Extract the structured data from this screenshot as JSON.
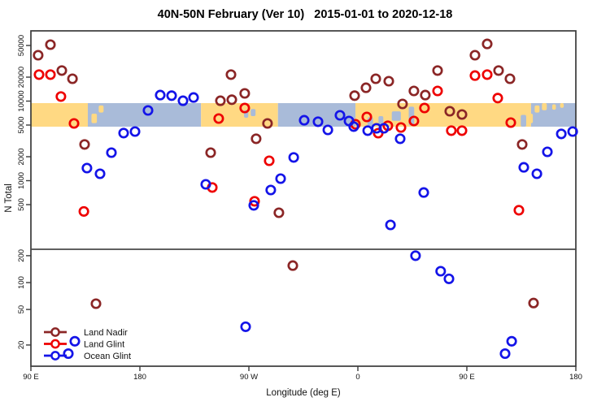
{
  "chart_data": {
    "type": "scatter",
    "title": "40N-50N February (Ver 10)   2015-01-01 to 2020-12-18",
    "xlabel": "Longitude (deg E)",
    "ylabel": "N Total",
    "x_axis": {
      "ticks": [
        {
          "lon": 90,
          "label": "90 E"
        },
        {
          "lon": 180,
          "label": "180"
        },
        {
          "lon": 270,
          "label": "90 W"
        },
        {
          "lon": 360,
          "label": "0"
        },
        {
          "lon": 450,
          "label": "90 E"
        },
        {
          "lon": 540,
          "label": "180"
        }
      ],
      "range_deg_plotted": [
        90,
        540
      ]
    },
    "y_axis": {
      "scale": "log10, broken into upper and lower panels",
      "upper_ticks": [
        50000,
        20000,
        10000,
        5000,
        2000,
        1000,
        500
      ],
      "lower_ticks": [
        200,
        100,
        50,
        20
      ]
    },
    "colors": {
      "land_nadir": "#8B2626",
      "land_glint": "#EE0000",
      "ocean_glint": "#1414E8",
      "band_land": "#FFD983",
      "band_ocean": "#A9BBD9",
      "frame": "#3A3A3A"
    },
    "map_band": {
      "n_range_covered": [
        5000,
        10000
      ],
      "segments": [
        {
          "from": 90,
          "to": 137,
          "surface": "land"
        },
        {
          "from": 137,
          "to": 230.5,
          "surface": "ocean"
        },
        {
          "from": 230.5,
          "to": 294,
          "surface": "land"
        },
        {
          "from": 294,
          "to": 358,
          "surface": "ocean"
        },
        {
          "from": 358,
          "to": 503,
          "surface": "land"
        },
        {
          "from": 503,
          "to": 540,
          "surface": "ocean"
        }
      ],
      "islands": [
        {
          "from": 140,
          "to": 144.5,
          "f0": 0.45,
          "f1": 0.85
        },
        {
          "from": 146,
          "to": 150,
          "f0": 0.1,
          "f1": 0.4
        },
        {
          "from": 500,
          "to": 504.5,
          "f0": 0.45,
          "f1": 0.85
        },
        {
          "from": 506,
          "to": 510,
          "f0": 0.1,
          "f1": 0.4
        },
        {
          "from": 512,
          "to": 516,
          "f0": 0.0,
          "f1": 0.3
        },
        {
          "from": 520.5,
          "to": 523.5,
          "f0": 0.05,
          "f1": 0.28
        },
        {
          "from": 527,
          "to": 530,
          "f0": 0.0,
          "f1": 0.2
        }
      ],
      "lakes": [
        {
          "from": 266,
          "to": 269.5,
          "f0": 0.3,
          "f1": 0.62
        },
        {
          "from": 271.5,
          "to": 275.5,
          "f0": 0.25,
          "f1": 0.55
        },
        {
          "from": 368,
          "to": 372.5,
          "f0": 0.6,
          "f1": 1.0
        },
        {
          "from": 377,
          "to": 381,
          "f0": 0.55,
          "f1": 1.0
        },
        {
          "from": 388,
          "to": 395.5,
          "f0": 0.35,
          "f1": 0.75
        },
        {
          "from": 402,
          "to": 406.5,
          "f0": 0.15,
          "f1": 0.95
        },
        {
          "from": 494.5,
          "to": 499,
          "f0": 0.5,
          "f1": 1.0
        }
      ]
    },
    "series": [
      {
        "name": "Land Nadir",
        "key": "land_nadir",
        "points": [
          [
            96.0,
            37700
          ],
          [
            106.1,
            51200
          ],
          [
            115.5,
            24200
          ],
          [
            124.3,
            19100
          ],
          [
            134.3,
            2850
          ],
          [
            143.7,
            58
          ],
          [
            238.4,
            2250
          ],
          [
            246.5,
            10100
          ],
          [
            255.2,
            21500
          ],
          [
            255.9,
            10400
          ],
          [
            266.6,
            12500
          ],
          [
            276.0,
            3360
          ],
          [
            285.4,
            5240
          ],
          [
            294.8,
            395
          ],
          [
            306.3,
            155
          ],
          [
            357.3,
            11700
          ],
          [
            366.7,
            14700
          ],
          [
            374.8,
            19100
          ],
          [
            385.5,
            17800
          ],
          [
            396.9,
            9200
          ],
          [
            406.3,
            13400
          ],
          [
            415.7,
            11900
          ],
          [
            425.8,
            24200
          ],
          [
            435.9,
            7450
          ],
          [
            446.0,
            6790
          ],
          [
            456.7,
            37700
          ],
          [
            466.8,
            52300
          ],
          [
            476.2,
            24200
          ],
          [
            485.6,
            19100
          ],
          [
            495.7,
            2850
          ],
          [
            505.1,
            59
          ]
        ]
      },
      {
        "name": "Land Glint",
        "key": "land_glint",
        "points": [
          [
            96.7,
            21500
          ],
          [
            106.1,
            21500
          ],
          [
            114.8,
            11400
          ],
          [
            125.6,
            5240
          ],
          [
            133.7,
            410
          ],
          [
            239.8,
            820
          ],
          [
            245.1,
            6040
          ],
          [
            266.6,
            8180
          ],
          [
            274.7,
            550
          ],
          [
            286.8,
            1780
          ],
          [
            358.0,
            5120
          ],
          [
            367.4,
            6320
          ],
          [
            376.8,
            3950
          ],
          [
            384.8,
            4890
          ],
          [
            395.6,
            4660
          ],
          [
            406.3,
            5620
          ],
          [
            415.0,
            8180
          ],
          [
            425.8,
            13400
          ],
          [
            437.2,
            4250
          ],
          [
            446.0,
            4250
          ],
          [
            456.7,
            20900
          ],
          [
            466.8,
            21500
          ],
          [
            475.5,
            10900
          ],
          [
            486.3,
            5370
          ],
          [
            493.0,
            425
          ]
        ]
      },
      {
        "name": "Ocean Glint",
        "key": "ocean_glint",
        "points": [
          [
            120.9,
            16
          ],
          [
            126.3,
            22
          ],
          [
            136.3,
            1440
          ],
          [
            147.1,
            1220
          ],
          [
            156.5,
            2250
          ],
          [
            166.6,
            3960
          ],
          [
            176.0,
            4140
          ],
          [
            186.7,
            7640
          ],
          [
            196.8,
            11900
          ],
          [
            206.2,
            11700
          ],
          [
            215.6,
            10100
          ],
          [
            224.3,
            11100
          ],
          [
            234.4,
            900
          ],
          [
            267.3,
            32
          ],
          [
            274.0,
            490
          ],
          [
            288.1,
            764
          ],
          [
            296.2,
            1060
          ],
          [
            307.0,
            1960
          ],
          [
            315.7,
            5750
          ],
          [
            327.1,
            5500
          ],
          [
            335.2,
            4340
          ],
          [
            345.2,
            6630
          ],
          [
            352.7,
            5620
          ],
          [
            356.6,
            4780
          ],
          [
            368.1,
            4250
          ],
          [
            375.4,
            4550
          ],
          [
            381.5,
            4550
          ],
          [
            386.9,
            278
          ],
          [
            394.9,
            3360
          ],
          [
            407.6,
            200
          ],
          [
            414.4,
            710
          ],
          [
            428.4,
            134
          ],
          [
            435.2,
            110
          ],
          [
            481.6,
            16
          ],
          [
            487.0,
            22
          ],
          [
            497.0,
            1470
          ],
          [
            507.8,
            1220
          ],
          [
            516.5,
            2300
          ],
          [
            528.0,
            3870
          ],
          [
            537.4,
            4140
          ]
        ]
      }
    ],
    "legend": {
      "position": "bottom-left",
      "items": [
        "Land Nadir",
        "Land Glint",
        "Ocean Glint"
      ]
    }
  }
}
